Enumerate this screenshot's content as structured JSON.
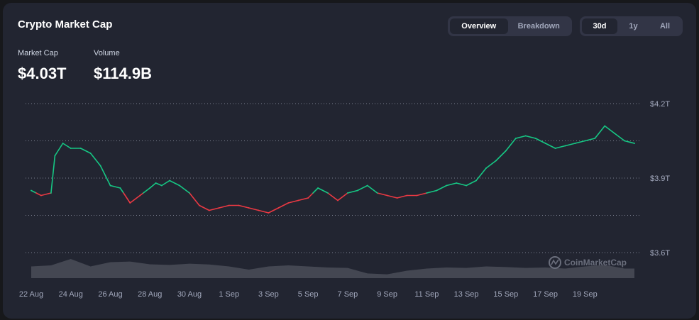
{
  "header": {
    "title": "Crypto Market Cap",
    "view_tabs": [
      {
        "label": "Overview",
        "active": true
      },
      {
        "label": "Breakdown",
        "active": false
      }
    ],
    "range_tabs": [
      {
        "label": "30d",
        "active": true
      },
      {
        "label": "1y",
        "active": false
      },
      {
        "label": "All",
        "active": false
      }
    ]
  },
  "stats": {
    "market_cap_label": "Market Cap",
    "market_cap_value": "$4.03T",
    "volume_label": "Volume",
    "volume_value": "$114.9B"
  },
  "watermark": "CoinMarketCap",
  "colors": {
    "up": "#16c784",
    "down": "#ea3943",
    "volume": "#4a4d58",
    "grid": "#7a7f8e",
    "background": "#222531"
  },
  "chart_data": {
    "type": "line",
    "x_tick_labels": [
      "22 Aug",
      "24 Aug",
      "26 Aug",
      "28 Aug",
      "30 Aug",
      "1 Sep",
      "3 Sep",
      "5 Sep",
      "7 Sep",
      "9 Sep",
      "11 Sep",
      "13 Sep",
      "15 Sep",
      "17 Sep",
      "19 Sep"
    ],
    "y_tick_labels": [
      "$4.2T",
      "$3.9T",
      "$3.6T"
    ],
    "y_unit": "trillion USD",
    "ylim": [
      3.6,
      4.2
    ],
    "gridlines": [
      4.2,
      4.05,
      3.9,
      3.75,
      3.6
    ],
    "baseline": 3.84,
    "series": [
      {
        "x_days": [
          0,
          0.5,
          1,
          1.2,
          1.6,
          2,
          2.5,
          3,
          3.5,
          4,
          4.5,
          5,
          5.5,
          6,
          6.3,
          6.6,
          7,
          7.5,
          8,
          8.5,
          9,
          9.5,
          10,
          10.5,
          11,
          11.5,
          12,
          12.5,
          13,
          13.5,
          14,
          14.5,
          15,
          15.5,
          16,
          16.5,
          17,
          17.5,
          18,
          18.5,
          19,
          19.5,
          20,
          20.5,
          21,
          21.5,
          22,
          22.5,
          23,
          23.5,
          24,
          24.5,
          25,
          25.5,
          26,
          26.5,
          27,
          27.5,
          28,
          28.5,
          29,
          29.5,
          30,
          30.5
        ],
        "values": [
          3.85,
          3.83,
          3.84,
          3.99,
          4.04,
          4.02,
          4.02,
          4.0,
          3.95,
          3.87,
          3.86,
          3.8,
          3.83,
          3.86,
          3.88,
          3.87,
          3.89,
          3.87,
          3.84,
          3.79,
          3.77,
          3.78,
          3.79,
          3.79,
          3.78,
          3.77,
          3.76,
          3.78,
          3.8,
          3.81,
          3.82,
          3.86,
          3.84,
          3.81,
          3.84,
          3.85,
          3.87,
          3.84,
          3.83,
          3.82,
          3.83,
          3.83,
          3.84,
          3.85,
          3.87,
          3.88,
          3.87,
          3.89,
          3.94,
          3.97,
          4.01,
          4.06,
          4.07,
          4.06,
          4.04,
          4.02,
          4.03,
          4.04,
          4.05,
          4.06,
          4.11,
          4.08,
          4.05,
          4.04
        ]
      }
    ],
    "volume": {
      "x_days": [
        0,
        1,
        2,
        3,
        4,
        5,
        6,
        7,
        8,
        9,
        10,
        11,
        12,
        13,
        14,
        15,
        16,
        17,
        18,
        19,
        20,
        21,
        22,
        23,
        24,
        25,
        26,
        27,
        28,
        29,
        30,
        30.5
      ],
      "values": [
        0.55,
        0.6,
        0.9,
        0.55,
        0.75,
        0.78,
        0.65,
        0.62,
        0.68,
        0.64,
        0.55,
        0.4,
        0.55,
        0.6,
        0.55,
        0.5,
        0.48,
        0.22,
        0.18,
        0.35,
        0.45,
        0.5,
        0.48,
        0.55,
        0.52,
        0.48,
        0.5,
        0.45,
        0.55,
        0.62,
        0.45,
        0.45
      ]
    }
  }
}
